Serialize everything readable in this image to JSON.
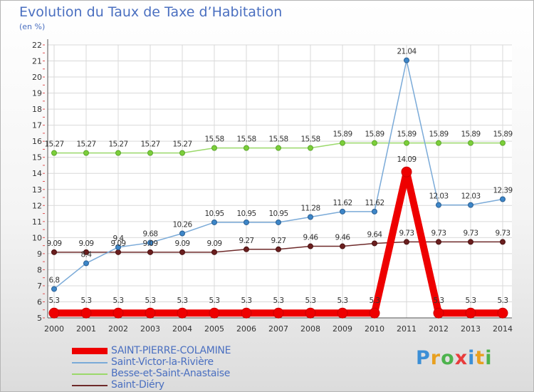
{
  "header": {
    "title": "Evolution du Taux de Taxe d’Habitation",
    "unit": "(en %)"
  },
  "logo": {
    "text": "Proxiti",
    "letter_colors": [
      "#3c8fd6",
      "#e8a020",
      "#4db34d",
      "#e83c3c",
      "#3c8fd6",
      "#e8a020",
      "#4db34d"
    ]
  },
  "chart_data": {
    "type": "line",
    "x": [
      2000,
      2001,
      2002,
      2003,
      2004,
      2005,
      2006,
      2007,
      2008,
      2009,
      2010,
      2011,
      2012,
      2013,
      2014
    ],
    "ylim": [
      5,
      22
    ],
    "yticks": [
      5,
      6,
      7,
      8,
      9,
      10,
      11,
      12,
      13,
      14,
      15,
      16,
      17,
      18,
      19,
      20,
      21,
      22
    ],
    "grid": true,
    "legend_position": "bottom-left",
    "series": [
      {
        "name": "SAINT-PIERRE-COLAMINE",
        "color": "#ee0000",
        "marker_fill": "#ee0000",
        "marker_stroke": "#cc0000",
        "bold": true,
        "values": [
          5.3,
          5.3,
          5.3,
          5.3,
          5.3,
          5.3,
          5.3,
          5.3,
          5.3,
          5.3,
          5.3,
          14.09,
          5.3,
          5.3,
          5.3
        ],
        "labels": [
          "5.3",
          "5.3",
          "5.3",
          "5.3",
          "5.3",
          "5.3",
          "5.3",
          "5.3",
          "5.3",
          "5.3",
          "5.3",
          "14.09",
          "5.3",
          "5.3",
          "5.3"
        ]
      },
      {
        "name": "Saint-Victor-la-Rivière",
        "color": "#7aaad8",
        "marker_fill": "#3d86c8",
        "marker_stroke": "#2a5f93",
        "bold": false,
        "values": [
          6.8,
          8.4,
          9.4,
          9.68,
          10.26,
          10.95,
          10.95,
          10.95,
          11.28,
          11.62,
          11.62,
          21.04,
          12.03,
          12.03,
          12.39
        ],
        "labels": [
          "6.8",
          "8.4",
          "9.4",
          "9.68",
          "10.26",
          "10.95",
          "10.95",
          "10.95",
          "11.28",
          "11.62",
          "11.62",
          "21.04",
          "12.03",
          "12.03",
          "12.39"
        ]
      },
      {
        "name": "Besse-et-Saint-Anastaise",
        "color": "#9bd96b",
        "marker_fill": "#7ccf3a",
        "marker_stroke": "#5aa52a",
        "bold": false,
        "values": [
          15.27,
          15.27,
          15.27,
          15.27,
          15.27,
          15.58,
          15.58,
          15.58,
          15.58,
          15.89,
          15.89,
          15.89,
          15.89,
          15.89,
          15.89
        ],
        "labels": [
          "15.27",
          "15.27",
          "15.27",
          "15.27",
          "15.27",
          "15.58",
          "15.58",
          "15.58",
          "15.58",
          "15.89",
          "15.89",
          "15.89",
          "15.89",
          "15.89",
          "15.89"
        ]
      },
      {
        "name": "Saint-Diéry",
        "color": "#6e2a2a",
        "marker_fill": "#6b1f1f",
        "marker_stroke": "#4a1010",
        "bold": false,
        "values": [
          9.09,
          9.09,
          9.09,
          9.09,
          9.09,
          9.09,
          9.27,
          9.27,
          9.46,
          9.46,
          9.64,
          9.73,
          9.73,
          9.73,
          9.73
        ],
        "labels": [
          "9.09",
          "9.09",
          "9.09",
          "9.09",
          "9.09",
          "9.09",
          "9.27",
          "9.27",
          "9.46",
          "9.46",
          "9.64",
          "9.73",
          "9.73",
          "9.73",
          "9.73"
        ]
      }
    ]
  }
}
